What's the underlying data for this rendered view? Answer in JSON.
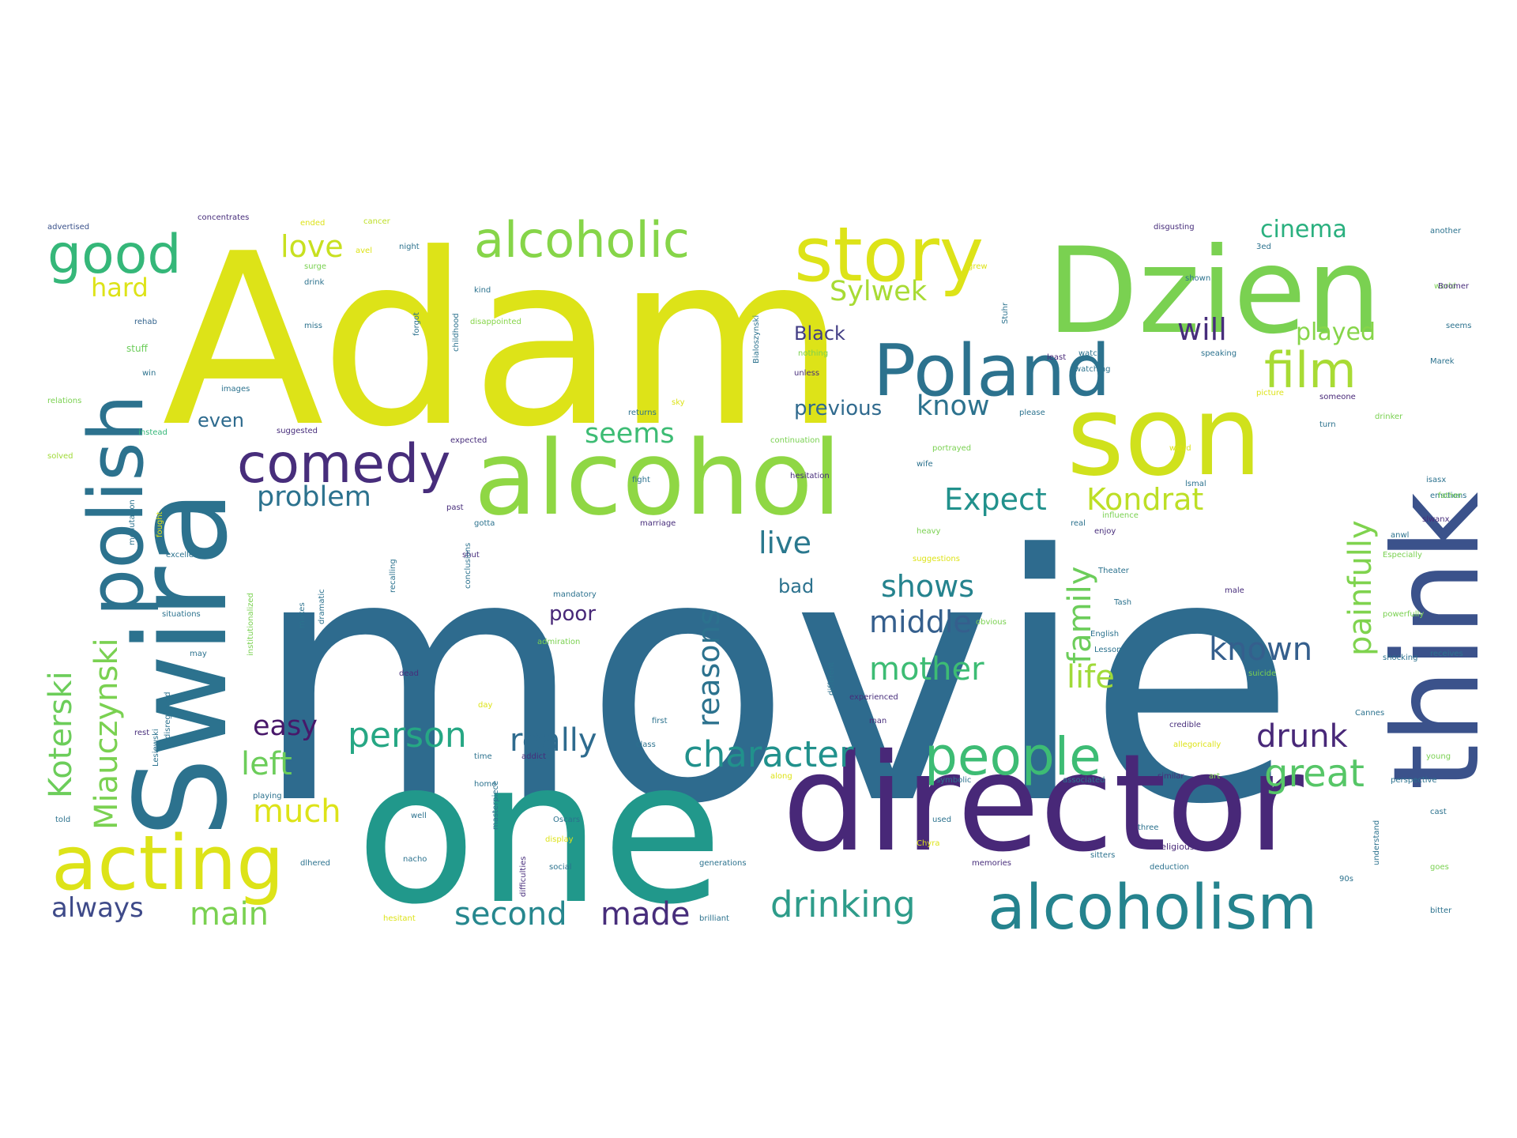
{
  "word_cloud": {
    "palette": {
      "yellow": "#dde318",
      "yellow_green": "#bddf26",
      "green": "#7ad151",
      "teal": "#25838e",
      "blue_teal": "#2c728e",
      "blue": "#33638d",
      "indigo": "#3b528b",
      "dark_purple": "#472d7b",
      "purple": "#482878",
      "sea_green": "#21918c",
      "mint": "#35b779",
      "light_green": "#a0da39"
    },
    "words": [
      {
        "text": "movie",
        "color": "#2e6b8e"
      },
      {
        "text": "Adam",
        "color": "#dde318"
      },
      {
        "text": "one",
        "color": "#21988b"
      },
      {
        "text": "director",
        "color": "#482878"
      },
      {
        "text": "Swira",
        "color": "#2c728e"
      },
      {
        "text": "think",
        "color": "#3b528b"
      },
      {
        "text": "Dzien",
        "color": "#7ad151"
      },
      {
        "text": "son",
        "color": "#d0e11c"
      },
      {
        "text": "alcohol",
        "color": "#8fd744"
      },
      {
        "text": "polish",
        "color": "#2c728e"
      },
      {
        "text": "story",
        "color": "#dde318"
      },
      {
        "text": "Poland",
        "color": "#2c728e"
      },
      {
        "text": "alcoholism",
        "color": "#25838e"
      },
      {
        "text": "acting",
        "color": "#dde318"
      },
      {
        "text": "alcoholic",
        "color": "#86d549"
      },
      {
        "text": "people",
        "color": "#3dbc74"
      },
      {
        "text": "comedy",
        "color": "#472d7b"
      },
      {
        "text": "good",
        "color": "#35b779"
      },
      {
        "text": "film",
        "color": "#a8db34"
      },
      {
        "text": "character",
        "color": "#21918c"
      },
      {
        "text": "drinking",
        "color": "#2e9c8a"
      },
      {
        "text": "Miauczynski",
        "color": "#7ad151"
      },
      {
        "text": "Koterski",
        "color": "#6ccd5a"
      },
      {
        "text": "painfully",
        "color": "#7fd34e"
      },
      {
        "text": "person",
        "color": "#26a784"
      },
      {
        "text": "great",
        "color": "#56c667"
      },
      {
        "text": "reasons",
        "color": "#2c728e"
      },
      {
        "text": "second",
        "color": "#26878e"
      },
      {
        "text": "made",
        "color": "#472d7b"
      },
      {
        "text": "main",
        "color": "#7ad151"
      },
      {
        "text": "always",
        "color": "#3e4a89"
      },
      {
        "text": "much",
        "color": "#dde318"
      },
      {
        "text": "left",
        "color": "#6ccd5a"
      },
      {
        "text": "easy",
        "color": "#48186a"
      },
      {
        "text": "really",
        "color": "#2e6b8e"
      },
      {
        "text": "drunk",
        "color": "#482878"
      },
      {
        "text": "mother",
        "color": "#3dbc74"
      },
      {
        "text": "middle",
        "color": "#355f8d"
      },
      {
        "text": "shows",
        "color": "#25838e"
      },
      {
        "text": "known",
        "color": "#355f8d"
      },
      {
        "text": "life",
        "color": "#a0da39"
      },
      {
        "text": "family",
        "color": "#6ccd5a"
      },
      {
        "text": "Kondrat",
        "color": "#bddf26"
      },
      {
        "text": "Expect",
        "color": "#21918c"
      },
      {
        "text": "problem",
        "color": "#2c728e"
      },
      {
        "text": "seems",
        "color": "#3dbc74"
      },
      {
        "text": "live",
        "color": "#2a788e"
      },
      {
        "text": "know",
        "color": "#2c728e"
      },
      {
        "text": "will",
        "color": "#472d7b"
      },
      {
        "text": "played",
        "color": "#86d549"
      },
      {
        "text": "love",
        "color": "#c8e020"
      },
      {
        "text": "hard",
        "color": "#dde318"
      },
      {
        "text": "Sylwek",
        "color": "#a8db34"
      },
      {
        "text": "cinema",
        "color": "#2ab07f"
      },
      {
        "text": "previous",
        "color": "#306a8e"
      },
      {
        "text": "Black",
        "color": "#433e85"
      },
      {
        "text": "even",
        "color": "#2e6b8e"
      },
      {
        "text": "bad",
        "color": "#2c728e"
      },
      {
        "text": "poor",
        "color": "#482878"
      },
      {
        "text": "advertised",
        "color": "#3b528b"
      },
      {
        "text": "concentrates",
        "color": "#472d7b"
      },
      {
        "text": "ended",
        "color": "#dde318"
      },
      {
        "text": "cancer",
        "color": "#bddf26"
      },
      {
        "text": "disgusting",
        "color": "#472d7b"
      },
      {
        "text": "another",
        "color": "#2c728e"
      },
      {
        "text": "rehab",
        "color": "#33638d"
      },
      {
        "text": "stuff",
        "color": "#6ccd5a"
      },
      {
        "text": "win",
        "color": "#2c728e"
      },
      {
        "text": "relations",
        "color": "#7ad151"
      },
      {
        "text": "instead",
        "color": "#35b779"
      },
      {
        "text": "solved",
        "color": "#a0da39"
      },
      {
        "text": "excellent",
        "color": "#2c728e"
      },
      {
        "text": "situations",
        "color": "#2c728e"
      },
      {
        "text": "disappointed",
        "color": "#86d549"
      },
      {
        "text": "suggested",
        "color": "#472d7b"
      },
      {
        "text": "expected",
        "color": "#472d7b"
      },
      {
        "text": "continuation",
        "color": "#7ad151"
      },
      {
        "text": "mandatory",
        "color": "#2c728e"
      },
      {
        "text": "admiration",
        "color": "#7ad151"
      },
      {
        "text": "Oscars",
        "color": "#2c728e"
      },
      {
        "text": "generations",
        "color": "#2c728e"
      },
      {
        "text": "brilliant",
        "color": "#2c728e"
      },
      {
        "text": "religious",
        "color": "#482878"
      },
      {
        "text": "emotions",
        "color": "#2c728e"
      },
      {
        "text": "father",
        "color": "#7ad151"
      },
      {
        "text": "powerfully",
        "color": "#7ad151"
      },
      {
        "text": "shocking",
        "color": "#2c728e"
      },
      {
        "text": "suicide",
        "color": "#7ad151"
      },
      {
        "text": "perspective",
        "color": "#2c728e"
      },
      {
        "text": "bitter",
        "color": "#2c728e"
      },
      {
        "text": "memories",
        "color": "#472d7b"
      },
      {
        "text": "English",
        "color": "#2c728e"
      },
      {
        "text": "suggestions",
        "color": "#dde318"
      },
      {
        "text": "heavy",
        "color": "#7ad151"
      },
      {
        "text": "marriage",
        "color": "#472d7b"
      },
      {
        "text": "gotta",
        "color": "#2c728e"
      },
      {
        "text": "addict",
        "color": "#472d7b"
      },
      {
        "text": "symbolic",
        "color": "#2c728e"
      },
      {
        "text": "credible",
        "color": "#472d7b"
      },
      {
        "text": "allegorically",
        "color": "#dde318"
      },
      {
        "text": "associated",
        "color": "#2c728e"
      },
      {
        "text": "similar",
        "color": "#472d7b"
      },
      {
        "text": "Cannes",
        "color": "#2c728e"
      },
      {
        "text": "young",
        "color": "#7ad151"
      },
      {
        "text": "cast",
        "color": "#2c728e"
      },
      {
        "text": "goes",
        "color": "#7ad151"
      },
      {
        "text": "Especially",
        "color": "#7ad151"
      },
      {
        "text": "influence",
        "color": "#7ad151"
      },
      {
        "text": "enjoy",
        "color": "#472d7b"
      },
      {
        "text": "real",
        "color": "#2c728e"
      },
      {
        "text": "watching",
        "color": "#2c728e"
      },
      {
        "text": "speaking",
        "color": "#2c728e"
      },
      {
        "text": "picture",
        "color": "#dde318"
      },
      {
        "text": "someone",
        "color": "#482878"
      },
      {
        "text": "turn",
        "color": "#2c728e"
      },
      {
        "text": "drinker",
        "color": "#7ad151"
      },
      {
        "text": "world",
        "color": "#7ad151"
      },
      {
        "text": "Marek",
        "color": "#2c728e"
      },
      {
        "text": "shown",
        "color": "#2c728e"
      },
      {
        "text": "watch",
        "color": "#2c728e"
      },
      {
        "text": "least",
        "color": "#482878"
      },
      {
        "text": "please",
        "color": "#2c728e"
      },
      {
        "text": "portrayed",
        "color": "#7ad151"
      },
      {
        "text": "wife",
        "color": "#2c728e"
      },
      {
        "text": "fight",
        "color": "#2c728e"
      },
      {
        "text": "past",
        "color": "#472d7b"
      },
      {
        "text": "dramatic",
        "color": "#2c728e"
      },
      {
        "text": "dead",
        "color": "#472d7b"
      },
      {
        "text": "makes",
        "color": "#2c728e"
      },
      {
        "text": "Lesson",
        "color": "#2c728e"
      },
      {
        "text": "obvious",
        "color": "#7ad151"
      },
      {
        "text": "different",
        "color": "#2c728e"
      },
      {
        "text": "experienced",
        "color": "#472d7b"
      },
      {
        "text": "man",
        "color": "#472d7b"
      },
      {
        "text": "first",
        "color": "#2c728e"
      },
      {
        "text": "class",
        "color": "#2c728e"
      },
      {
        "text": "time",
        "color": "#2c728e"
      },
      {
        "text": "home",
        "color": "#2c728e"
      },
      {
        "text": "well",
        "color": "#2c728e"
      },
      {
        "text": "nacho",
        "color": "#2c728e"
      },
      {
        "text": "social",
        "color": "#2c728e"
      },
      {
        "text": "display",
        "color": "#dde318"
      },
      {
        "text": "along",
        "color": "#dde318"
      },
      {
        "text": "used",
        "color": "#2c728e"
      },
      {
        "text": "three",
        "color": "#2c728e"
      },
      {
        "text": "art",
        "color": "#7ad151"
      },
      {
        "text": "90s",
        "color": "#2c728e"
      },
      {
        "text": "told",
        "color": "#2c728e"
      },
      {
        "text": "playing",
        "color": "#2c728e"
      },
      {
        "text": "rest",
        "color": "#472d7b"
      },
      {
        "text": "day",
        "color": "#dde318"
      },
      {
        "text": "may",
        "color": "#2c728e"
      },
      {
        "text": "shut",
        "color": "#472d7b"
      },
      {
        "text": "night",
        "color": "#2c728e"
      },
      {
        "text": "miss",
        "color": "#2c728e"
      },
      {
        "text": "images",
        "color": "#2c728e"
      },
      {
        "text": "drink",
        "color": "#2c728e"
      },
      {
        "text": "surge",
        "color": "#7ad151"
      },
      {
        "text": "avel",
        "color": "#dde318"
      },
      {
        "text": "grew",
        "color": "#dde318"
      },
      {
        "text": "kind",
        "color": "#2c728e"
      },
      {
        "text": "nothing",
        "color": "#7ad151"
      },
      {
        "text": "unless",
        "color": "#472d7b"
      },
      {
        "text": "sky",
        "color": "#dde318"
      },
      {
        "text": "returns",
        "color": "#2c728e"
      },
      {
        "text": "Tash",
        "color": "#2c728e"
      },
      {
        "text": "Theater",
        "color": "#2c728e"
      },
      {
        "text": "male",
        "color": "#472d7b"
      },
      {
        "text": "Chyra",
        "color": "#dde318"
      },
      {
        "text": "forgot",
        "color": "#2c728e"
      },
      {
        "text": "childhood",
        "color": "#2c728e"
      },
      {
        "text": "Stuhr",
        "color": "#2c728e"
      },
      {
        "text": "Bialoszynski",
        "color": "#2c728e"
      },
      {
        "text": "recalling",
        "color": "#2c728e"
      },
      {
        "text": "conclusions",
        "color": "#2c728e"
      },
      {
        "text": "masterpiece",
        "color": "#2c728e"
      },
      {
        "text": "difficulties",
        "color": "#472d7b"
      },
      {
        "text": "Lesiewski",
        "color": "#2c728e"
      },
      {
        "text": "disregarded",
        "color": "#2c728e"
      },
      {
        "text": "institutionalized",
        "color": "#7ad151"
      },
      {
        "text": "menutation",
        "color": "#2c728e"
      },
      {
        "text": "fought",
        "color": "#dde318"
      },
      {
        "text": "hesitant",
        "color": "#dde318"
      },
      {
        "text": "understand",
        "color": "#2c728e"
      },
      {
        "text": "anwl",
        "color": "#2c728e"
      },
      {
        "text": "receives",
        "color": "#2c728e"
      },
      {
        "text": "seems2",
        "color": "#2c728e"
      },
      {
        "text": "3ed",
        "color": "#2c728e"
      },
      {
        "text": "Boomer",
        "color": "#472d7b"
      },
      {
        "text": "hesitation",
        "color": "#472d7b"
      },
      {
        "text": "dlhered",
        "color": "#2c728e"
      },
      {
        "text": "deduction",
        "color": "#2c728e"
      },
      {
        "text": "sitters",
        "color": "#2c728e"
      },
      {
        "text": "wstrd",
        "color": "#dde318"
      },
      {
        "text": "isasx",
        "color": "#2c728e"
      },
      {
        "text": "slwanx",
        "color": "#472d7b"
      },
      {
        "text": "lsmal",
        "color": "#2c728e"
      }
    ]
  }
}
